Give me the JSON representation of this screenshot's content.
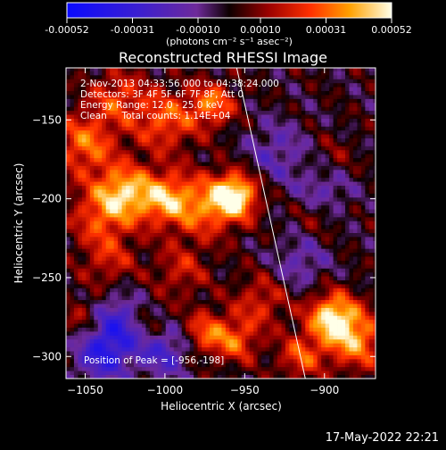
{
  "chart_data": {
    "type": "heatmap",
    "title": "Reconstructed RHESSI Image",
    "xlabel": "Heliocentric X (arcsec)",
    "ylabel": "Heliocentric Y (arcsec)",
    "xlim": [
      -1062,
      -868
    ],
    "ylim": [
      -314,
      -117
    ],
    "xticks": [
      -1050,
      -1000,
      -950,
      -900
    ],
    "yticks": [
      -150,
      -200,
      -250,
      -300
    ],
    "colorbar": {
      "label": "(photons cm⁻² s⁻¹ asec⁻²)",
      "ticks": [
        "-0.00052",
        "-0.00031",
        "-0.00010",
        "0.00010",
        "0.00031",
        "0.00052"
      ],
      "range": [
        -0.00052,
        0.00052
      ]
    },
    "annotations": [
      "2-Nov-2013 04:33:56.000 to 04:38:24.000",
      "Detectors: 3F 4F 5F 6F 7F 8F, Att 0",
      "Energy Range: 12.0 - 25.0 keV",
      "Clean     Total counts: 1.14E+04"
    ],
    "peak_label": "Position of Peak = [-956,-198]",
    "peak": [
      -956,
      -198
    ],
    "limb": [
      [
        -955,
        -117
      ],
      [
        -912,
        -314
      ]
    ],
    "timestamp": "17-May-2022 22:21",
    "colors": {
      "background": "#000000",
      "text": "#ffffff",
      "limb": "#ffffff"
    }
  }
}
